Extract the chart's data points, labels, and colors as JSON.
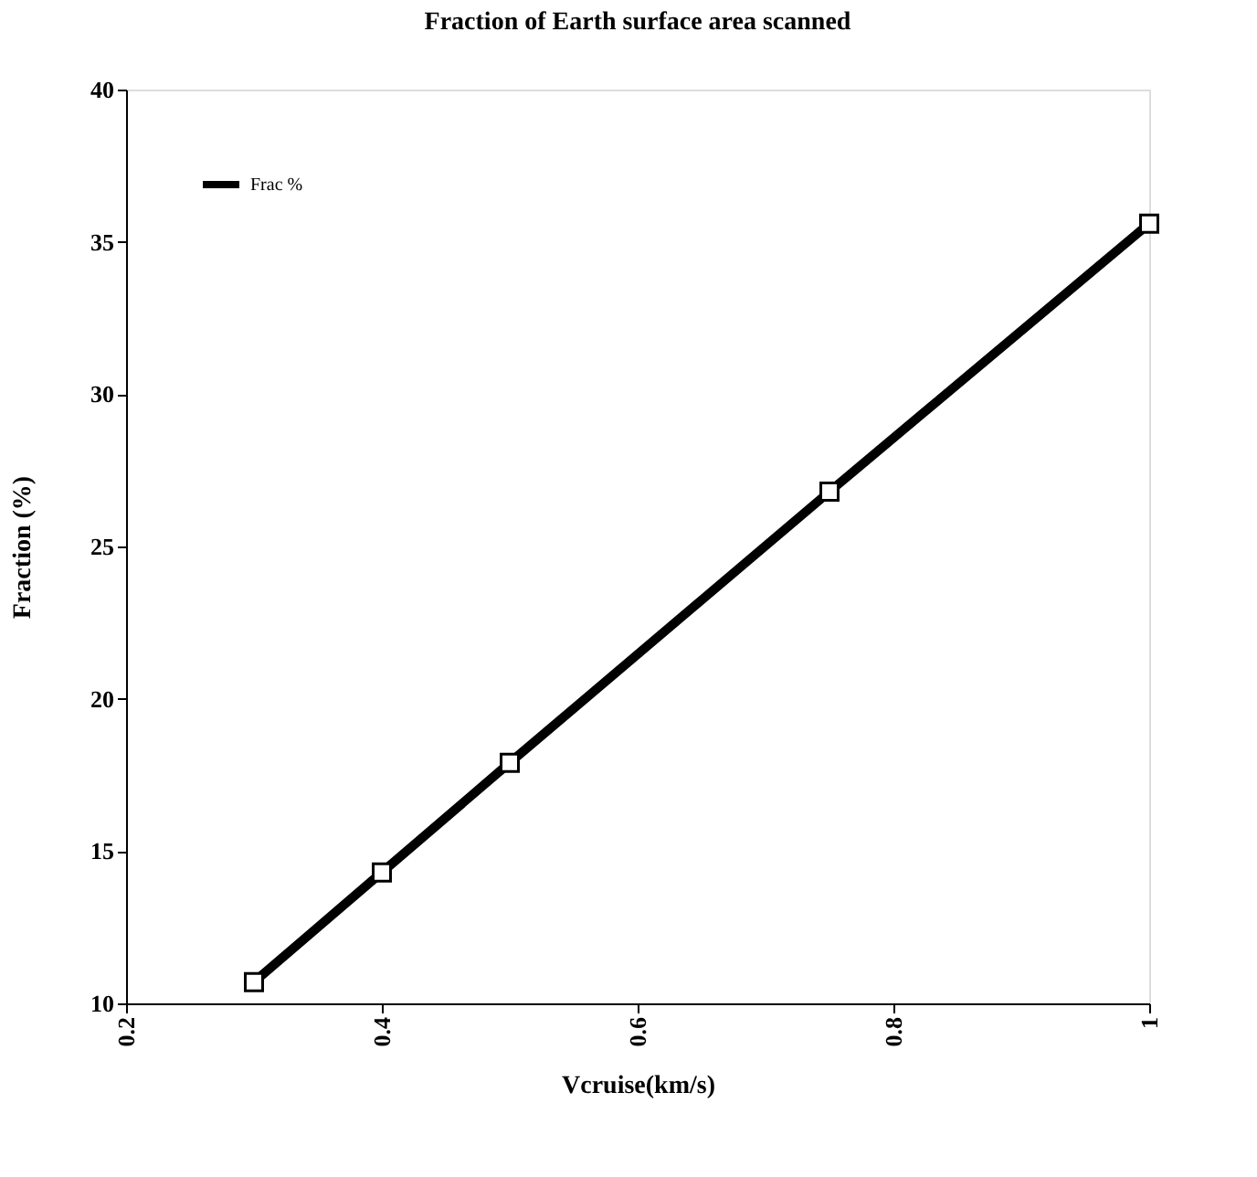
{
  "chart_data": {
    "type": "line",
    "title": "Fraction of Earth surface area scanned",
    "xlabel": "Vcruise(km/s)",
    "ylabel": "Fraction (%)",
    "x": [
      0.3,
      0.4,
      0.5,
      0.75,
      1.0
    ],
    "series": [
      {
        "name": "Frac %",
        "color": "#000000",
        "values": [
          10.7,
          14.3,
          17.9,
          26.8,
          35.6
        ]
      }
    ],
    "xlim": [
      0.2,
      1.0
    ],
    "xticks": [
      0.2,
      0.4,
      0.6,
      0.8,
      {
        "value": 1.0,
        "label": "1"
      }
    ],
    "ylim": [
      10,
      40
    ],
    "yticks": [
      10,
      15,
      20,
      25,
      30,
      35,
      40
    ],
    "grid": false,
    "legend": "top left",
    "marker": "square",
    "line_style": "solid"
  }
}
